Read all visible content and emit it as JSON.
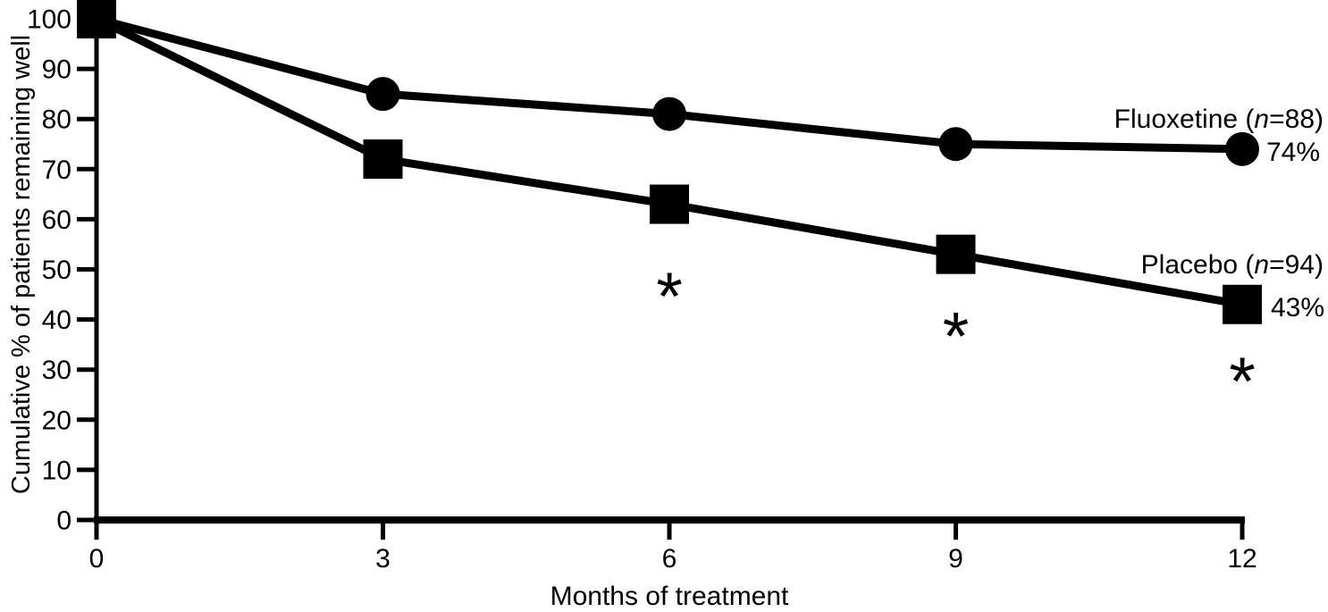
{
  "figure": {
    "background": "#ffffff",
    "ink": "#000000"
  },
  "chart_data": {
    "type": "line",
    "title": "",
    "xlabel": "Months of treatment",
    "ylabel": "Cumulative % of patients remaining well",
    "xlim": [
      0,
      12
    ],
    "ylim": [
      0,
      100
    ],
    "xticks": [
      0,
      3,
      6,
      9,
      12
    ],
    "yticks": [
      0,
      10,
      20,
      30,
      40,
      50,
      60,
      70,
      80,
      90,
      100
    ],
    "grid": false,
    "legend_position": "inline-right",
    "x": [
      0,
      3,
      6,
      9,
      12
    ],
    "series": [
      {
        "name": "Fluoxetine (n=88)",
        "label_parts": {
          "pre": "Fluoxetine (",
          "italic": "n",
          "post": "=88)"
        },
        "marker": "circle",
        "values": [
          100,
          85,
          81,
          75,
          74
        ],
        "end_label": "74%"
      },
      {
        "name": "Placebo (n=94)",
        "label_parts": {
          "pre": "Placebo (",
          "italic": "n",
          "post": "=94)"
        },
        "marker": "square",
        "values": [
          100,
          72,
          63,
          53,
          43
        ],
        "end_label": "43%"
      }
    ],
    "annotations": [
      {
        "text": "*",
        "x": 6,
        "y": 47
      },
      {
        "text": "*",
        "x": 9,
        "y": 39
      },
      {
        "text": "*",
        "x": 12,
        "y": 30
      }
    ]
  }
}
